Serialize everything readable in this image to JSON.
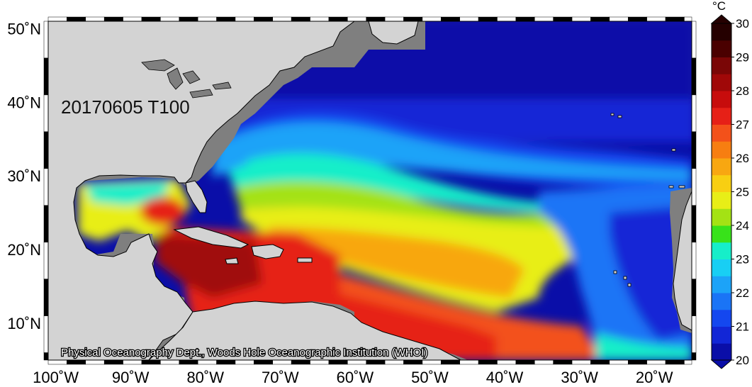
{
  "map": {
    "title_overlay": "20170605 T100",
    "credit": "Physical Oceanography Dept., Woods Hole Oceanographic Institution (WHOI)",
    "variable_unit": "°C",
    "lon_ticks": [
      "100˚W",
      "90˚W",
      "80˚W",
      "70˚W",
      "60˚W",
      "50˚W",
      "40˚W",
      "30˚W",
      "20˚W"
    ],
    "lat_ticks": [
      "50˚N",
      "40˚N",
      "30˚N",
      "20˚N",
      "10˚N"
    ],
    "region": {
      "lon_min": -101,
      "lon_max": -15,
      "lat_min": 5,
      "lat_max": 51
    }
  },
  "colorbar": {
    "unit": "°C",
    "min": 20,
    "max": 30,
    "tick_labels": [
      "20",
      "21",
      "22",
      "23",
      "24",
      "25",
      "26",
      "27",
      "28",
      "29",
      "30"
    ],
    "colors": [
      "#0a0ea8",
      "#1226d6",
      "#1447ef",
      "#1a74f6",
      "#1ca3f8",
      "#18cff4",
      "#16eec9",
      "#38e21a",
      "#a4e214",
      "#e8ee17",
      "#f8cf12",
      "#f8a711",
      "#f77e11",
      "#f3511a",
      "#e62017",
      "#c70c0c",
      "#a00808",
      "#7a0606",
      "#4a0000",
      "#250000"
    ]
  },
  "colors": {
    "land": "#d3d3d3",
    "coast_outline": "#000000",
    "no_data": "#7f7f7f",
    "frame": "#000000"
  }
}
